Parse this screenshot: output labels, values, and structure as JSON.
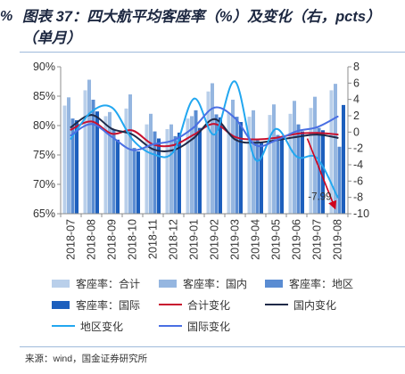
{
  "page": {
    "edge_fragment": "%"
  },
  "title": {
    "line1": "图表 37：四大航平均客座率（%）及变化（右，pcts）",
    "line2": "（单月）"
  },
  "source": "来源：wind，国金证券研究所",
  "chart_data": {
    "type": "bar",
    "categories": [
      "2018-07",
      "2018-08",
      "2018-09",
      "2018-10",
      "2018-11",
      "2018-12",
      "2019-01",
      "2019-02",
      "2019-03",
      "2019-04",
      "2019-05",
      "2019-06",
      "2019-07",
      "2019-08"
    ],
    "series": [
      {
        "name": "客座率：合计",
        "type": "bar",
        "axis": "left",
        "color": "#b9cfea",
        "values": [
          83.4,
          86.0,
          81.6,
          82.9,
          80.2,
          79.4,
          81.2,
          85.8,
          82.2,
          81.5,
          81.8,
          82.0,
          83.0,
          86.0
        ]
      },
      {
        "name": "客座率：国内",
        "type": "bar",
        "axis": "left",
        "color": "#95b6e0",
        "values": [
          84.8,
          87.8,
          82.3,
          85.3,
          82.0,
          80.2,
          81.6,
          87.2,
          84.4,
          82.6,
          83.6,
          84.2,
          84.9,
          87.1
        ]
      },
      {
        "name": "客座率：地区",
        "type": "bar",
        "axis": "left",
        "color": "#5a8cd2",
        "values": [
          81.2,
          84.4,
          79.3,
          76.2,
          79.0,
          78.2,
          82.6,
          81.9,
          81.5,
          77.8,
          78.4,
          80.2,
          79.6,
          76.4
        ]
      },
      {
        "name": "客座率：国际",
        "type": "bar",
        "axis": "left",
        "color": "#1d5fbd",
        "values": [
          80.9,
          82.4,
          77.6,
          75.6,
          77.8,
          78.8,
          79.6,
          81.4,
          80.6,
          77.2,
          78.0,
          79.0,
          79.2,
          83.5
        ]
      },
      {
        "name": "合计变化",
        "type": "line",
        "axis": "right",
        "color": "#c8102e",
        "values": [
          0.3,
          1.3,
          -0.2,
          0.2,
          -1.5,
          -1.6,
          -0.3,
          1.0,
          -0.6,
          -0.9,
          -0.7,
          -0.2,
          -0.1,
          -0.3
        ]
      },
      {
        "name": "国内变化",
        "type": "line",
        "axis": "right",
        "color": "#1f2a48",
        "values": [
          0.6,
          2.1,
          0.4,
          -0.3,
          -2.1,
          -2.2,
          -0.7,
          1.6,
          -0.9,
          -1.3,
          -1.0,
          -0.6,
          -0.3,
          -0.7
        ]
      },
      {
        "name": "地区变化",
        "type": "line",
        "axis": "right",
        "color": "#22a7f0",
        "values": [
          -0.8,
          2.5,
          3.0,
          -0.9,
          -2.7,
          -2.4,
          4.1,
          -0.3,
          6.2,
          -3.4,
          0.4,
          -3.0,
          -3.2,
          -7.99
        ]
      },
      {
        "name": "国际变化",
        "type": "line",
        "axis": "right",
        "color": "#4a6fe3",
        "values": [
          -0.4,
          1.0,
          -0.6,
          -2.2,
          -1.5,
          -1.0,
          0.6,
          3.0,
          1.7,
          -1.6,
          -1.0,
          0.1,
          0.6,
          1.9
        ]
      }
    ],
    "y_left": {
      "range": [
        65,
        90
      ],
      "ticks": [
        65,
        70,
        75,
        80,
        85,
        90
      ],
      "tick_labels": [
        "65%",
        "70%",
        "75%",
        "80%",
        "85%",
        "90%"
      ]
    },
    "y_right": {
      "range": [
        -10,
        8
      ],
      "ticks": [
        -10,
        -8,
        -6,
        -4,
        -2,
        0,
        2,
        4,
        6,
        8
      ],
      "tick_labels": [
        "-10",
        "-8",
        "-6",
        "-4",
        "-2",
        "0",
        "2",
        "4",
        "6",
        "8"
      ]
    },
    "annotations": [
      {
        "text": "-7.99",
        "series": "地区变化",
        "x": "2019-08",
        "y": -7.99,
        "color": "#d0021b"
      }
    ],
    "grid": false,
    "legend": "bottom"
  }
}
